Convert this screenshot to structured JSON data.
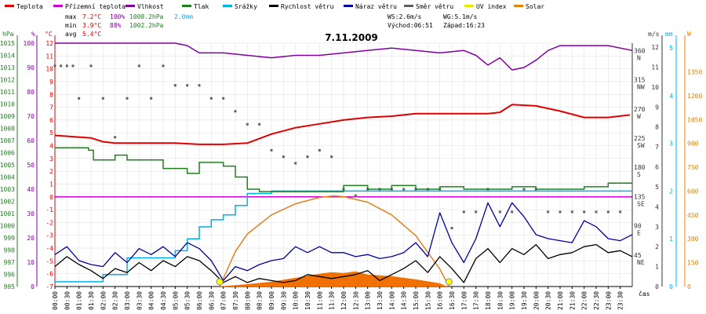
{
  "chart_data": {
    "type": "line",
    "title": "7.11.2009",
    "x_label": "čas",
    "legend": [
      {
        "name": "Teplota",
        "color": "#e00000"
      },
      {
        "name": "Přízemní teplota",
        "color": "#d000d0"
      },
      {
        "name": "Vlhkost",
        "color": "#8000a0"
      },
      {
        "name": "Tlak",
        "color": "#208020"
      },
      {
        "name": "Srážky",
        "color": "#00b0e8"
      },
      {
        "name": "Rychlost větru",
        "color": "#000000"
      },
      {
        "name": "Náraz větru",
        "color": "#0000a0"
      },
      {
        "name": "Směr větru",
        "color": "#606060"
      },
      {
        "name": "UV index",
        "color": "#e8e800"
      },
      {
        "name": "Solar",
        "color": "#f08000"
      }
    ],
    "stats": {
      "max": {
        "label": "max",
        "temp": "7.2°C",
        "hum": "100%",
        "press": "1008.2hPa",
        "rain": "2.0mm"
      },
      "min": {
        "label": "min",
        "temp": "3.9°C",
        "hum": "88%",
        "press": "1002.2hPa"
      },
      "avg": {
        "label": "avg",
        "temp": "5.4°C"
      },
      "ws": "WS:2.6m/s",
      "wg": "WG:5.1m/s",
      "sunrise": "Východ:06:51",
      "sunset": "Západ:16:23"
    },
    "x_ticks": [
      "00:00",
      "00:30",
      "01:00",
      "01:30",
      "02:00",
      "02:30",
      "03:00",
      "03:30",
      "04:00",
      "04:30",
      "05:00",
      "05:30",
      "06:00",
      "06:30",
      "07:00",
      "07:30",
      "08:00",
      "08:30",
      "09:00",
      "09:30",
      "10:00",
      "10:30",
      "11:00",
      "11:30",
      "12:00",
      "12:30",
      "13:00",
      "13:30",
      "14:00",
      "14:30",
      "15:00",
      "15:30",
      "16:00",
      "16:30",
      "17:00",
      "17:30",
      "18:00",
      "18:30",
      "19:00",
      "19:30",
      "20:00",
      "20:30",
      "21:00",
      "21:30",
      "22:00",
      "22:30",
      "23:00",
      "23:30"
    ],
    "axes": {
      "hpa": {
        "unit": "hPa",
        "ticks": [
          "1015",
          "1014",
          "1013",
          "1012",
          "1011",
          "1010",
          "1009",
          "1008",
          "1007",
          "1006",
          "1005",
          "1004",
          "1003",
          "1002",
          "1001",
          "1000",
          "999",
          "998",
          "997",
          "996",
          "995"
        ],
        "color": "#208020"
      },
      "pct": {
        "unit": "%",
        "ticks": [
          "100",
          "90",
          "80",
          "70",
          "60",
          "50",
          "40",
          "30",
          "20",
          "10",
          "0"
        ],
        "color": "#8000a0"
      },
      "degc": {
        "unit": "°C",
        "ticks": [
          "12",
          "11",
          "10",
          "9",
          "8",
          "7",
          "6",
          "5",
          "4",
          "3",
          "2",
          "1",
          "0",
          "-1",
          "-2",
          "-3",
          "-4",
          "-5",
          "-6",
          "-7"
        ],
        "color": "#e00000"
      },
      "dir": {
        "ticks": [
          "360",
          "315",
          "270",
          "225",
          "180",
          "135",
          "90",
          "45"
        ],
        "letters": [
          "N",
          "NW",
          "W",
          "SW",
          "S",
          "SE",
          "E",
          "NE"
        ]
      },
      "ms": {
        "unit": "m/s",
        "ticks": [
          "12",
          "11",
          "10",
          "9",
          "8",
          "7",
          "6",
          "5",
          "4",
          "3",
          "2",
          "1",
          "0"
        ]
      },
      "mm": {
        "unit": "mm",
        "ticks": [
          "5",
          "4",
          "3",
          "2",
          "1",
          "0"
        ],
        "color": "#00b0e8"
      },
      "wm2": {
        "unit": "W",
        "ticks": [
          "1500",
          "1350",
          "1200",
          "1050",
          "900",
          "750",
          "600",
          "450",
          "300",
          "150",
          "0"
        ],
        "color": "#f08000"
      }
    },
    "series": {
      "temperature": {
        "name": "Teplota",
        "unit": "°C",
        "times": [
          0,
          1.5,
          2,
          2.5,
          3,
          5,
          6,
          7,
          8,
          9,
          10,
          11,
          12,
          13,
          14,
          15,
          16,
          17,
          18,
          18.5,
          19,
          20,
          21,
          22,
          23,
          23.9
        ],
        "values": [
          4.8,
          4.6,
          4.3,
          4.2,
          4.2,
          4.2,
          4.1,
          4.1,
          4.2,
          4.9,
          5.4,
          5.7,
          6.0,
          6.2,
          6.3,
          6.5,
          6.5,
          6.5,
          6.5,
          6.6,
          7.2,
          7.1,
          6.7,
          6.2,
          6.2,
          6.4
        ]
      },
      "ground_temperature": {
        "name": "Přízemní teplota",
        "unit": "°C",
        "times": [
          0,
          24
        ],
        "values": [
          0,
          0
        ]
      },
      "humidity": {
        "name": "Vlhkost",
        "unit": "%",
        "times": [
          0,
          5,
          5.5,
          6,
          7,
          8,
          9,
          10,
          11,
          12,
          13,
          14,
          15,
          16,
          17,
          17.5,
          18,
          18.5,
          19,
          19.5,
          20,
          20.5,
          21,
          22,
          23,
          24
        ],
        "values": [
          100,
          100,
          99,
          96,
          96,
          95,
          94,
          95,
          95,
          96,
          97,
          98,
          97,
          96,
          97,
          95,
          91,
          94,
          89,
          90,
          93,
          97,
          99,
          99,
          99,
          97
        ]
      },
      "pressure": {
        "name": "Tlak",
        "unit": "hPa",
        "times": [
          0,
          1,
          1.4,
          1.6,
          2,
          2.5,
          3,
          4,
          4.5,
          5,
          5.5,
          6,
          6.5,
          7,
          7.5,
          8,
          8.5,
          9,
          10,
          11,
          12,
          13,
          14,
          15,
          16,
          17,
          18,
          19,
          20,
          21,
          22,
          23,
          24
        ],
        "values": [
          1006.4,
          1006.4,
          1006.2,
          1005.4,
          1005.4,
          1005.8,
          1005.4,
          1005.4,
          1004.7,
          1004.7,
          1004.3,
          1005.2,
          1005.2,
          1004.9,
          1004.0,
          1003.0,
          1002.8,
          1002.8,
          1002.8,
          1002.8,
          1003.3,
          1003.0,
          1003.3,
          1003.0,
          1003.2,
          1003.0,
          1003.0,
          1003.2,
          1003.0,
          1003.0,
          1003.2,
          1003.5,
          1003.5
        ]
      },
      "rain": {
        "name": "Srážky",
        "unit": "mm",
        "times": [
          0,
          1,
          2,
          3,
          4,
          5,
          5.5,
          6,
          6.5,
          7,
          7.5,
          8,
          9,
          9.5,
          10,
          24
        ],
        "values": [
          0.1,
          0.1,
          0.25,
          0.6,
          0.6,
          0.75,
          1.0,
          1.25,
          1.4,
          1.5,
          1.7,
          1.95,
          2.0,
          2.0,
          2.0,
          2.0
        ]
      },
      "wind_speed": {
        "name": "Rychlost větru",
        "unit": "m/s",
        "times": [
          0,
          0.5,
          1,
          1.5,
          2,
          2.5,
          3,
          3.5,
          4,
          4.5,
          5,
          5.5,
          6,
          6.5,
          7,
          7.5,
          8,
          8.5,
          9,
          9.5,
          10,
          10.5,
          11,
          11.5,
          12,
          12.5,
          13,
          13.5,
          14,
          14.5,
          15,
          15.5,
          16,
          16.5,
          17,
          17.5,
          18,
          18.5,
          19,
          19.5,
          20,
          20.5,
          21,
          21.5,
          22,
          22.5,
          23,
          23.5,
          24
        ],
        "values": [
          1.0,
          1.5,
          1.1,
          0.8,
          0.4,
          0.9,
          0.7,
          1.2,
          0.8,
          1.3,
          1.0,
          1.5,
          1.3,
          0.8,
          0.2,
          0.5,
          0.2,
          0.4,
          0.3,
          0.2,
          0.3,
          0.6,
          0.5,
          0.4,
          0.5,
          0.6,
          0.8,
          0.3,
          0.6,
          0.9,
          1.3,
          0.7,
          1.5,
          0.9,
          0.2,
          1.4,
          1.9,
          1.2,
          1.9,
          1.6,
          2.1,
          1.4,
          1.6,
          1.7,
          2.0,
          2.1,
          1.7,
          1.8,
          1.5
        ]
      },
      "wind_gust": {
        "name": "Náraz větru",
        "unit": "m/s",
        "times": [
          0,
          0.5,
          1,
          1.5,
          2,
          2.5,
          3,
          3.5,
          4,
          4.5,
          5,
          5.5,
          6,
          6.5,
          7,
          7.5,
          8,
          8.5,
          9,
          9.5,
          10,
          10.5,
          11,
          11.5,
          12,
          12.5,
          13,
          13.5,
          14,
          14.5,
          15,
          15.5,
          16,
          16.5,
          17,
          17.5,
          18,
          18.5,
          19,
          19.5,
          20,
          20.5,
          21,
          21.5,
          22,
          22.5,
          23,
          23.5,
          24
        ],
        "values": [
          1.6,
          2.0,
          1.3,
          1.1,
          1.0,
          1.7,
          1.2,
          1.9,
          1.6,
          2.0,
          1.5,
          2.2,
          1.9,
          1.3,
          0.3,
          1.0,
          0.8,
          1.1,
          1.3,
          1.4,
          2.0,
          1.7,
          2.0,
          1.7,
          1.7,
          1.5,
          1.6,
          1.4,
          1.5,
          1.7,
          2.2,
          1.5,
          3.7,
          2.2,
          1.2,
          2.4,
          4.2,
          3.0,
          4.2,
          3.5,
          2.6,
          2.4,
          2.3,
          2.2,
          3.3,
          3.0,
          2.4,
          2.3,
          2.6
        ]
      },
      "wind_direction": {
        "name": "Směr větru",
        "unit": "°",
        "times": [
          0,
          0.25,
          0.5,
          0.75,
          1,
          1.5,
          2,
          2.5,
          3,
          3.5,
          4,
          4.5,
          5,
          5.5,
          6,
          6.5,
          7,
          7.5,
          8,
          8.5,
          9,
          9.5,
          10,
          10.5,
          11,
          11.5,
          12,
          12.5,
          13,
          13.5,
          14,
          14.5,
          15,
          15.5,
          16,
          16.5,
          17,
          17.5,
          18,
          18.5,
          19,
          19.5,
          20,
          20.5,
          21,
          21.5,
          22,
          22.5,
          23,
          23.5
        ],
        "values": [
          340,
          340,
          340,
          340,
          290,
          340,
          290,
          230,
          290,
          340,
          290,
          340,
          310,
          310,
          310,
          290,
          290,
          270,
          250,
          250,
          210,
          200,
          190,
          200,
          210,
          200,
          150,
          140,
          150,
          150,
          150,
          150,
          150,
          150,
          150,
          90,
          115,
          115,
          150,
          115,
          115,
          150,
          150,
          115,
          115,
          115,
          115,
          115,
          115,
          115
        ]
      },
      "solar": {
        "name": "Solar",
        "unit": "W/m²",
        "times": [
          6.8,
          8,
          9,
          10,
          11,
          11.5,
          12,
          12.5,
          13,
          13.5,
          14,
          15,
          16,
          16.3
        ],
        "values": [
          0,
          15,
          30,
          55,
          80,
          90,
          85,
          95,
          75,
          70,
          65,
          45,
          20,
          0
        ]
      },
      "solar_max": {
        "name": "Solar (theoretical)",
        "unit": "W/m²",
        "times": [
          6.85,
          7.5,
          8,
          9,
          10,
          11,
          11.6,
          12,
          13,
          14,
          15,
          16,
          16.38
        ],
        "values": [
          0,
          220,
          330,
          450,
          520,
          560,
          570,
          565,
          530,
          450,
          320,
          110,
          0
        ]
      },
      "sun_events": {
        "sunrise_hour": 6.85,
        "sunset_hour": 16.38
      }
    }
  }
}
